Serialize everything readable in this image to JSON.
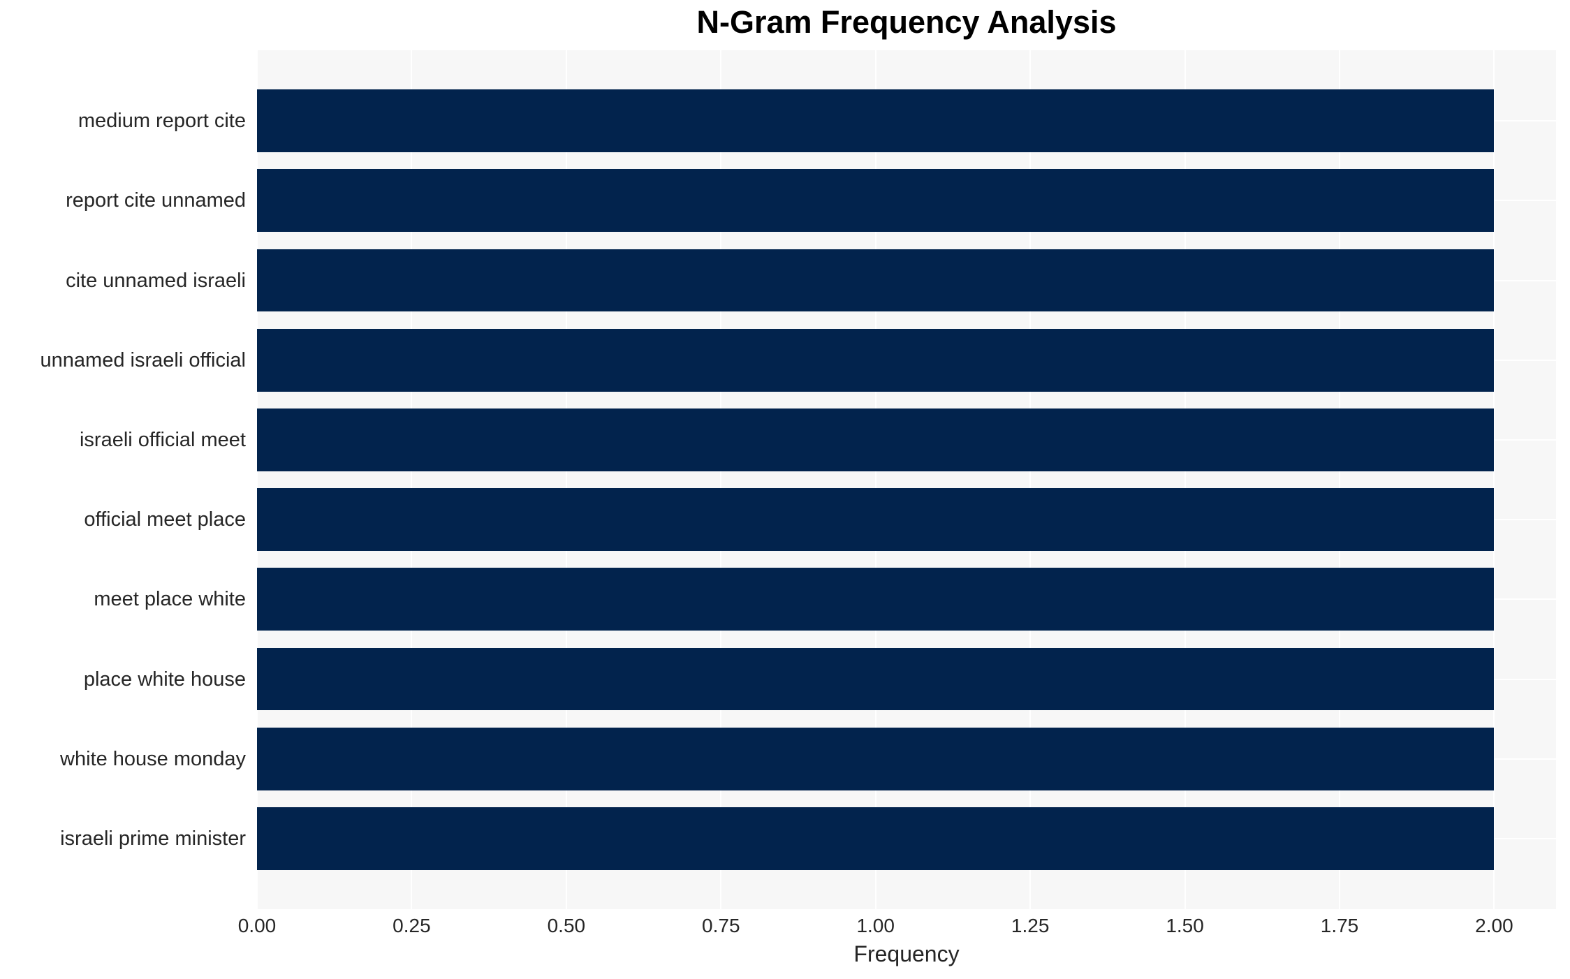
{
  "chart_data": {
    "type": "bar",
    "orientation": "horizontal",
    "title": "N-Gram Frequency Analysis",
    "xlabel": "Frequency",
    "ylabel": "",
    "categories": [
      "medium report cite",
      "report cite unnamed",
      "cite unnamed israeli",
      "unnamed israeli official",
      "israeli official meet",
      "official meet place",
      "meet place white",
      "place white house",
      "white house monday",
      "israeli prime minister"
    ],
    "values": [
      2.0,
      2.0,
      2.0,
      2.0,
      2.0,
      2.0,
      2.0,
      2.0,
      2.0,
      2.0
    ],
    "xlim": [
      0,
      2.1
    ],
    "xticks": [
      0.0,
      0.25,
      0.5,
      0.75,
      1.0,
      1.25,
      1.5,
      1.75,
      2.0
    ],
    "xtick_labels": [
      "0.00",
      "0.25",
      "0.50",
      "0.75",
      "1.00",
      "1.25",
      "1.50",
      "1.75",
      "2.00"
    ],
    "grid": true,
    "legend_shown": false,
    "colors": {
      "bar": "#02234d",
      "plot_background": "#f7f7f7",
      "gridline": "#ffffff",
      "tick_text": "#262626",
      "title_text": "#000000"
    }
  }
}
